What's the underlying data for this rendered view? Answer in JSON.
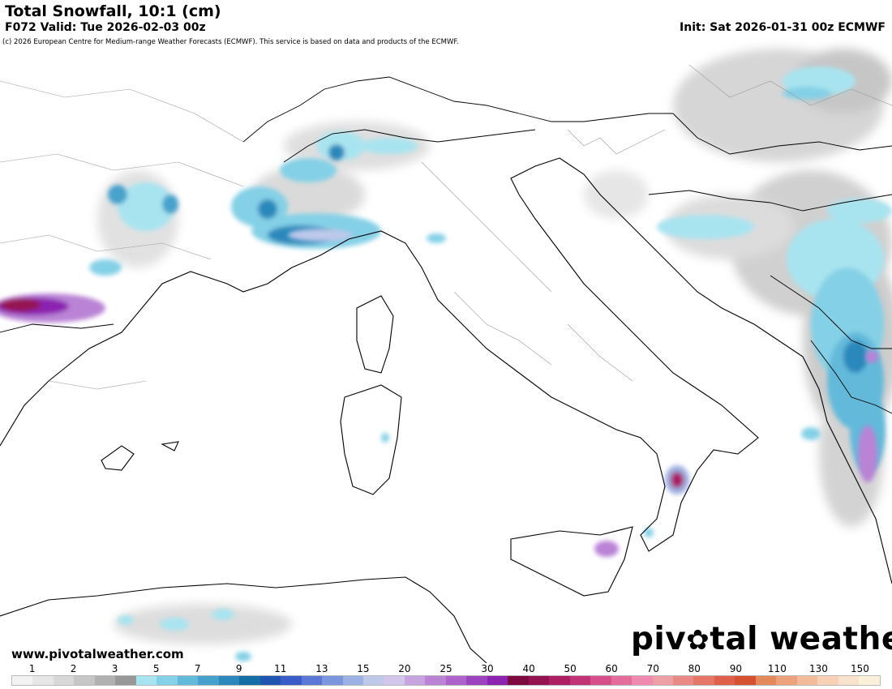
{
  "header": {
    "title": "Total Snowfall, 10:1 (cm)",
    "valid": "F072 Valid: Tue 2026-02-03 00z",
    "init": "Init: Sat 2026-01-31 00z ECMWF"
  },
  "copyright": "(c) 2026 European Centre for Medium-range Weather Forecasts (ECMWF). This service is based on data and products of the ECMWF.",
  "footer": {
    "website": "www.pivotalweather.com",
    "brand_part1": "piv",
    "brand_part2": "tal weather"
  },
  "legend": {
    "ticks": [
      "1",
      "2",
      "3",
      "5",
      "7",
      "9",
      "11",
      "13",
      "15",
      "20",
      "25",
      "30",
      "40",
      "50",
      "60",
      "70",
      "80",
      "90",
      "110",
      "130",
      "150"
    ],
    "colors": [
      "#f2f2f2",
      "#e6e6e6",
      "#d8d8d8",
      "#c6c6c6",
      "#b0b0b0",
      "#989898",
      "#a8e4f0",
      "#84d0e6",
      "#62b9da",
      "#46a2cc",
      "#2a88bb",
      "#136ea6",
      "#1f55b0",
      "#3a5cc9",
      "#5b78d6",
      "#7d95dc",
      "#9db0e2",
      "#bdc8ea",
      "#d2c6ea",
      "#c7a3df",
      "#ba83d6",
      "#ad62cc",
      "#9c43bf",
      "#8c24b1",
      "#7c0a3e",
      "#951251",
      "#ac1f63",
      "#c23375",
      "#d54f88",
      "#e36c9b",
      "#f08aaf",
      "#eca0a5",
      "#e98a86",
      "#e57667",
      "#df5f4b",
      "#d6512f",
      "#e48a5a",
      "#eca37c",
      "#f2bb9a",
      "#f6d1b6",
      "#f9e2cd",
      "#fbf1da"
    ]
  }
}
